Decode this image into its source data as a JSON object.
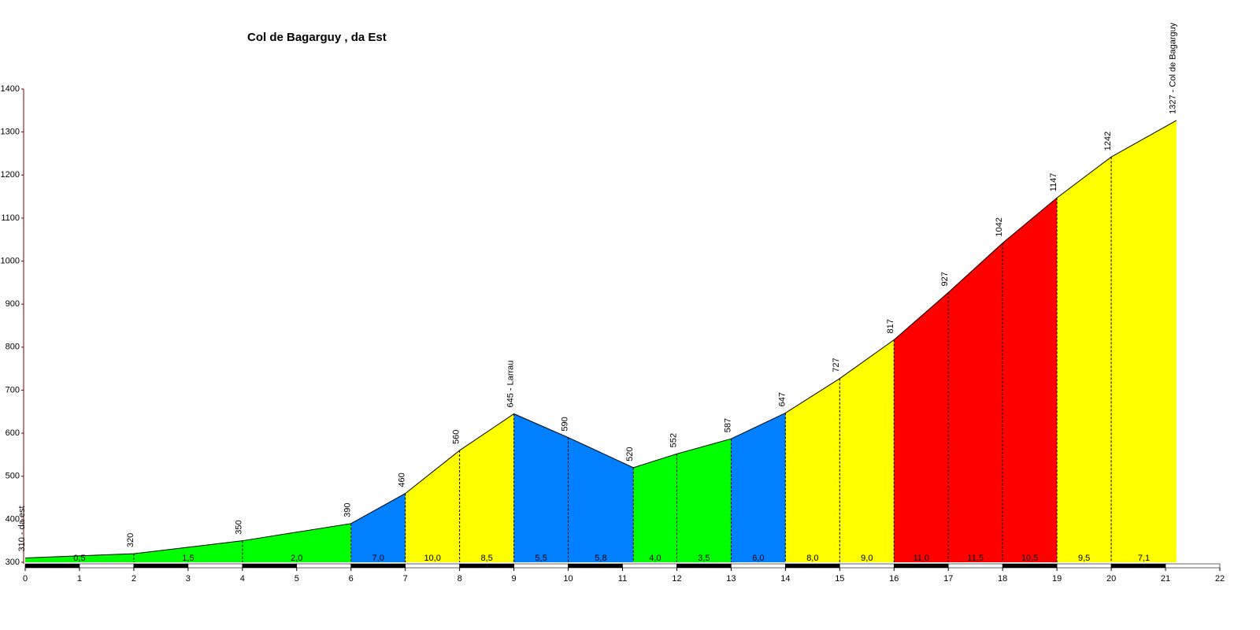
{
  "chart_data": {
    "type": "area",
    "title": "Col de Bagarguy , da Est",
    "x": [
      0,
      2,
      4,
      6,
      7,
      8,
      9,
      10,
      11.2,
      12,
      13,
      14,
      15,
      16,
      17,
      18,
      19,
      20,
      21.2
    ],
    "values": [
      310,
      320,
      350,
      390,
      460,
      560,
      645,
      590,
      520,
      552,
      587,
      647,
      727,
      817,
      927,
      1042,
      1147,
      1242,
      1327
    ],
    "value_labels": [
      "310 - da est",
      "320",
      "350",
      "390",
      "460",
      "560",
      "645 - Larrau",
      "590",
      "520",
      "552",
      "587",
      "647",
      "727",
      "817",
      "927",
      "1042",
      "1147",
      "1242",
      "1327 - Col de Bagarguy"
    ],
    "line_color": "#000000",
    "gradients": {
      "values": [
        0.5,
        1.5,
        2.0,
        7.0,
        10.0,
        8.5,
        5.5,
        5.8,
        4.0,
        3.5,
        6.0,
        8.0,
        9.0,
        11.0,
        11.5,
        10.5,
        9.5,
        7.1
      ],
      "value_labels": [
        "0,5",
        "1,5",
        "2,0",
        "7,0",
        "10,0",
        "8,5",
        "5,5",
        "5,8",
        "4,0",
        "3,5",
        "6,0",
        "8,0",
        "9,0",
        "11,0",
        "11,5",
        "10,5",
        "9,5",
        "7,1"
      ],
      "colors": [
        "#00ff00",
        "#00ff00",
        "#00ff00",
        "#0080ff",
        "#ffff00",
        "#ffff00",
        "#0080ff",
        "#0080ff",
        "#00ff00",
        "#00ff00",
        "#0080ff",
        "#ffff00",
        "#ffff00",
        "#ff0000",
        "#ff0000",
        "#ff0000",
        "#ffff00",
        "#ffff00"
      ]
    },
    "xlim": [
      0,
      22
    ],
    "xticks": [
      0,
      1,
      2,
      3,
      4,
      5,
      6,
      7,
      8,
      9,
      10,
      11,
      12,
      13,
      14,
      15,
      16,
      17,
      18,
      19,
      20,
      21,
      22
    ],
    "ylim": [
      300,
      1400
    ],
    "yticks": [
      300,
      400,
      500,
      600,
      700,
      800,
      900,
      1000,
      1100,
      1200,
      1300,
      1400
    ],
    "grid": false
  }
}
